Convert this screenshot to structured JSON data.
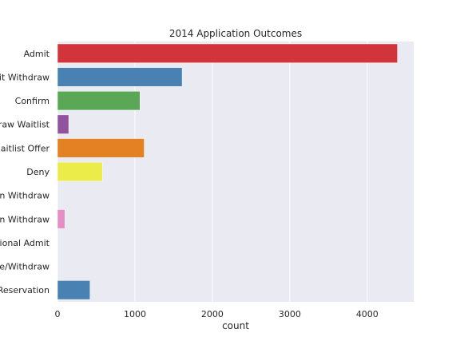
{
  "chart_data": {
    "type": "bar",
    "orientation": "horizontal",
    "title": "2014 Application Outcomes",
    "xlabel": "count",
    "ylabel": "",
    "categories": [
      "Admit",
      "it Withdraw",
      "Confirm",
      "raw Waitlist",
      "aitlist Offer",
      "Deny",
      "n Withdraw",
      "n Withdraw",
      "ional Admit",
      "e/Withdraw",
      "Reservation"
    ],
    "values": [
      4390,
      1610,
      1065,
      145,
      1120,
      580,
      0,
      95,
      0,
      0,
      420
    ],
    "colors": [
      "#d1343a",
      "#4981b3",
      "#5aa855",
      "#91529e",
      "#e48123",
      "#ebeb4a",
      "#a0522d",
      "#e58ec3",
      "#999999",
      "#d1343a",
      "#4981b3"
    ],
    "xlim": [
      0,
      4600
    ],
    "xticks": [
      0,
      1000,
      2000,
      3000,
      4000
    ],
    "grid": true,
    "background": "#eaeaf2"
  }
}
